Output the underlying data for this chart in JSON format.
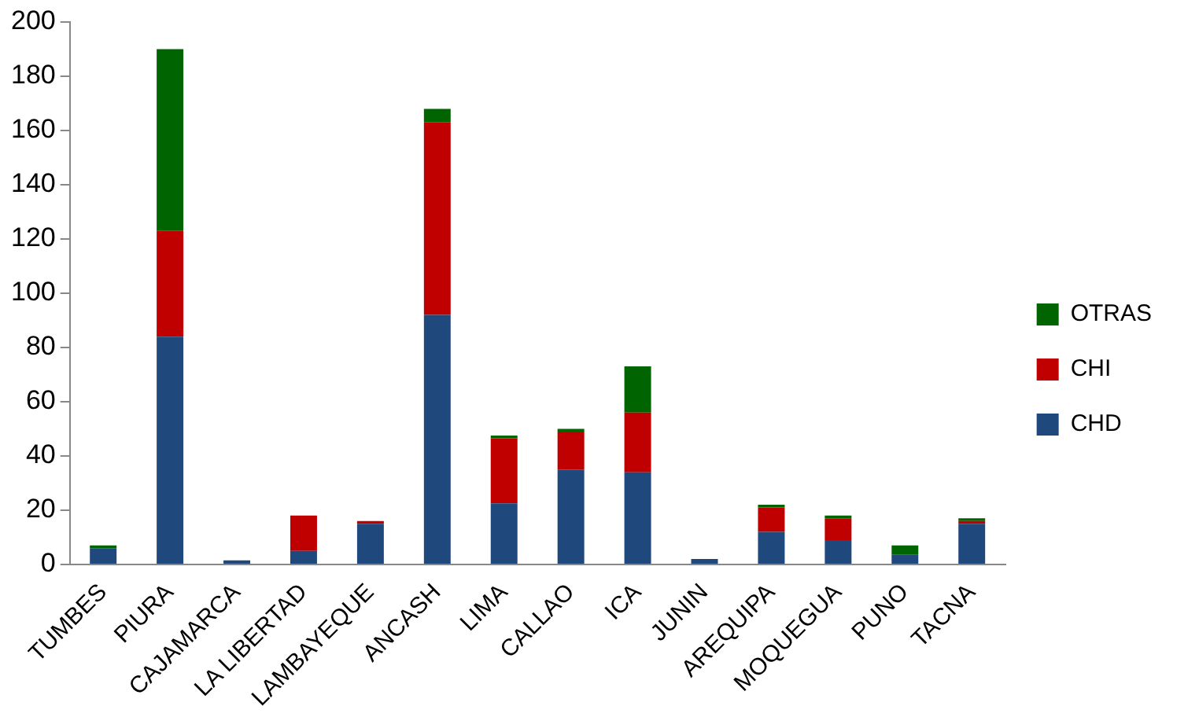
{
  "chart_data": {
    "type": "bar",
    "stacked": true,
    "categories": [
      "TUMBES",
      "PIURA",
      "CAJAMARCA",
      "LA LIBERTAD",
      "LAMBAYEQUE",
      "ANCASH",
      "LIMA",
      "CALLAO",
      "ICA",
      "JUNIN",
      "AREQUIPA",
      "MOQUEGUA",
      "PUNO",
      "TACNA"
    ],
    "series": [
      {
        "name": "CHD",
        "color": "#1f497d",
        "values": [
          6,
          84,
          1.5,
          5,
          15,
          92,
          22.5,
          35,
          34,
          2,
          12,
          9,
          3.5,
          15
        ]
      },
      {
        "name": "CHI",
        "color": "#c00000",
        "values": [
          0,
          39,
          0,
          13,
          1,
          71,
          24,
          14,
          22,
          0,
          9,
          8,
          0,
          1
        ]
      },
      {
        "name": "OTRAS",
        "color": "#006400",
        "values": [
          1,
          67,
          0,
          0,
          0,
          5,
          1,
          1,
          17,
          0,
          1,
          1,
          3.5,
          1
        ]
      }
    ],
    "ylim": [
      0,
      200
    ],
    "yticks": [
      0,
      20,
      40,
      60,
      80,
      100,
      120,
      140,
      160,
      180,
      200
    ],
    "grid": false,
    "legend": "right"
  }
}
